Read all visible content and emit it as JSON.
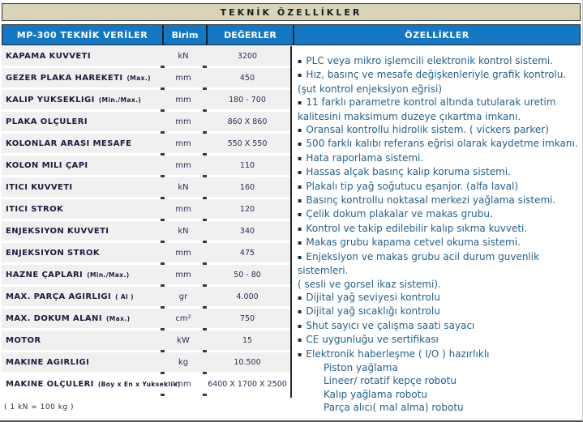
{
  "page": {
    "band_title": "TEKNİK ÖZELLİKLER",
    "footnote": "( 1 kN = 100 kg )"
  },
  "colors": {
    "header_blue": "#1377c4",
    "band_beige": "#d9d3b8",
    "row_gray": "#f0f0f0",
    "label_ink": "#1b1b3d",
    "feature_text": "#25608e"
  },
  "table": {
    "header": {
      "model": "MP-300 TEKNİK VERİLER",
      "unit": "Birim",
      "values": "DEĞERLER",
      "features": "ÖZELLİKLER"
    },
    "rows": [
      {
        "label": "KAPAMA KUVVETI",
        "qualifier": "",
        "unit": "kN",
        "value": "3200"
      },
      {
        "label": "GEZER PLAKA HAREKETI",
        "qualifier": "(Max.)",
        "unit": "mm",
        "value": "450"
      },
      {
        "label": "KALIP YUKSEKLIGI",
        "qualifier": "(Min./Max.)",
        "unit": "mm",
        "value": "180 - 700"
      },
      {
        "label": "PLAKA OLÇULERI",
        "qualifier": "",
        "unit": "mm",
        "value": "860 X 860"
      },
      {
        "label": "KOLONLAR ARASI MESAFE",
        "qualifier": "",
        "unit": "mm",
        "value": "550 X 550"
      },
      {
        "label": "KOLON MILI ÇAPI",
        "qualifier": "",
        "unit": "mm",
        "value": "110"
      },
      {
        "label": "ITICI KUVVETI",
        "qualifier": "",
        "unit": "kN",
        "value": "160"
      },
      {
        "label": "ITICI STROK",
        "qualifier": "",
        "unit": "mm",
        "value": "120"
      },
      {
        "label": "ENJEKSIYON KUVVETI",
        "qualifier": "",
        "unit": "kN",
        "value": "340"
      },
      {
        "label": "ENJEKSIYON STROK",
        "qualifier": "",
        "unit": "mm",
        "value": "475"
      },
      {
        "label": "HAZNE ÇAPLARI",
        "qualifier": "(Min./Max.)",
        "unit": "mm",
        "value": "50 - 80"
      },
      {
        "label": "MAX. PARÇA AGIRLIGI",
        "qualifier": "( Al )",
        "unit": "gr",
        "value": "4.000"
      },
      {
        "label": "MAX. DOKUM ALANI",
        "qualifier": "(Max.)",
        "unit": "cm²",
        "value": "750"
      },
      {
        "label": "MOTOR",
        "qualifier": "",
        "unit": "kW",
        "value": "15"
      },
      {
        "label": "MAKINE AGIRLIGI",
        "qualifier": "",
        "unit": "kg",
        "value": "10.500"
      },
      {
        "label": "MAKINE OLÇULERI",
        "qualifier": "(Boy x En x Yukseklik)",
        "unit": "mm",
        "value": "6400 X 1700 X 2500",
        "last": true
      }
    ]
  },
  "features": {
    "items": [
      {
        "text": "PLC veya mikro işlemcili elektronik kontrol sistemi.",
        "bullet": true,
        "sub": false
      },
      {
        "text": "Hız, basınç ve mesafe değişkenleriyle grafik kontrolu.",
        "bullet": true,
        "sub": false
      },
      {
        "text": "(şut kontrol enjeksiyon eğrisi)",
        "bullet": false,
        "sub": false
      },
      {
        "text": "11 farklı parametre kontrol altında tutularak uretim kalitesini maksimum duzeye çıkartma imkanı.",
        "bullet": true,
        "sub": false
      },
      {
        "text": "Oransal kontrollu hidrolik sistem. ( vickers  parker)",
        "bullet": true,
        "sub": false
      },
      {
        "text": "500 farklı kalıbı referans eğrisi olarak kaydetme imkanı.",
        "bullet": true,
        "sub": false
      },
      {
        "text": "Hata raporlama sistemi.",
        "bullet": true,
        "sub": false
      },
      {
        "text": "Hassas alçak basınç kalıp koruma sistemi.",
        "bullet": true,
        "sub": false
      },
      {
        "text": "Plakalı tip yağ soğutucu eşanjor. (alfa laval)",
        "bullet": true,
        "sub": false
      },
      {
        "text": "Basınç kontrollu noktasal merkezi yağlama sistemi.",
        "bullet": true,
        "sub": false
      },
      {
        "text": "Çelik dokum plakalar ve makas grubu.",
        "bullet": true,
        "sub": false
      },
      {
        "text": "Kontrol ve takip edilebilir kalıp sıkma kuvveti.",
        "bullet": true,
        "sub": false
      },
      {
        "text": "Makas grubu kapama cetvel okuma sistemi.",
        "bullet": true,
        "sub": false
      },
      {
        "text": "Enjeksiyon ve makas grubu acil durum guvenlik sistemleri.",
        "bullet": true,
        "sub": false
      },
      {
        "text": "( sesli ve gorsel ikaz sistemi).",
        "bullet": false,
        "sub": false
      },
      {
        "text": "Dijital yağ seviyesi kontrolu",
        "bullet": true,
        "sub": false
      },
      {
        "text": "Dijital yağ sıcaklığı kontrolu",
        "bullet": true,
        "sub": false
      },
      {
        "text": "Shut sayıcı ve çalışma saati sayacı",
        "bullet": true,
        "sub": false
      },
      {
        "text": "CE uygunluğu ve sertifikası",
        "bullet": true,
        "sub": false
      },
      {
        "text": "Elektronik haberleşme ( I/O ) hazırlıklı",
        "bullet": true,
        "sub": false
      },
      {
        "text": "Piston yağlama",
        "bullet": false,
        "sub": true
      },
      {
        "text": "Lineer/ rotatif kepçe robotu",
        "bullet": false,
        "sub": true
      },
      {
        "text": "Kalıp yağlama robotu",
        "bullet": false,
        "sub": true
      },
      {
        "text": "Parça alıcı( mal alma) robotu",
        "bullet": false,
        "sub": true
      }
    ]
  }
}
